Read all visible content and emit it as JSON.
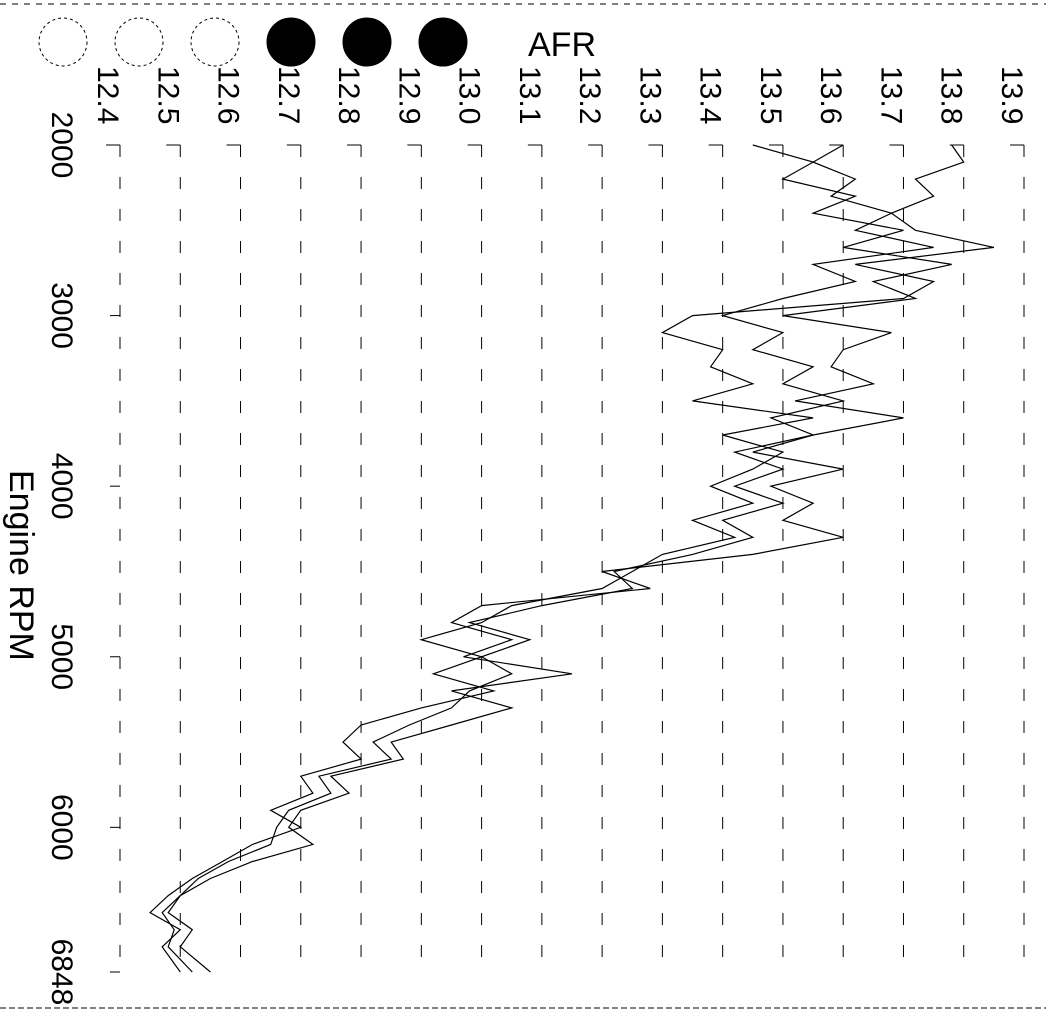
{
  "chart_data": {
    "type": "line",
    "orientation": "rotated 90 degrees clockwise",
    "xlabel": "Engine RPM",
    "ylabel": "AFR",
    "x_ticks": [
      "2000",
      "3000",
      "4000",
      "5000",
      "6000",
      "6848"
    ],
    "y_ticks": [
      "12.4",
      "12.5",
      "12.6",
      "12.7",
      "12.8",
      "12.9",
      "13.0",
      "13.1",
      "13.2",
      "13.3",
      "13.4",
      "13.5",
      "13.6",
      "13.7",
      "13.8",
      "13.9"
    ],
    "xlim": [
      2000,
      6848
    ],
    "ylim": [
      12.4,
      13.9
    ],
    "grid": true,
    "legend": {
      "placement": "top-left",
      "markers": [
        {
          "style": "hollow",
          "color": "#ffffff"
        },
        {
          "style": "hollow",
          "color": "#ffffff"
        },
        {
          "style": "hollow",
          "color": "#ffffff"
        },
        {
          "style": "filled",
          "color": "#000000"
        },
        {
          "style": "filled",
          "color": "#000000"
        },
        {
          "style": "filled",
          "color": "#000000"
        }
      ]
    },
    "series": [
      {
        "color": "#000000",
        "points": [
          [
            2000,
            13.45
          ],
          [
            2100,
            13.55
          ],
          [
            2200,
            13.5
          ],
          [
            2300,
            13.62
          ],
          [
            2400,
            13.55
          ],
          [
            2500,
            13.7
          ],
          [
            2600,
            13.6
          ],
          [
            2700,
            13.78
          ],
          [
            2800,
            13.65
          ],
          [
            2900,
            13.72
          ],
          [
            3000,
            13.5
          ],
          [
            3100,
            13.68
          ],
          [
            3200,
            13.6
          ],
          [
            3300,
            13.58
          ],
          [
            3400,
            13.65
          ],
          [
            3500,
            13.52
          ],
          [
            3600,
            13.7
          ],
          [
            3700,
            13.55
          ],
          [
            3800,
            13.45
          ],
          [
            3900,
            13.6
          ],
          [
            4000,
            13.48
          ],
          [
            4100,
            13.55
          ],
          [
            4200,
            13.5
          ],
          [
            4300,
            13.6
          ],
          [
            4400,
            13.45
          ],
          [
            4500,
            13.2
          ],
          [
            4600,
            13.28
          ],
          [
            4700,
            13.0
          ],
          [
            4800,
            12.95
          ],
          [
            4900,
            13.05
          ],
          [
            5000,
            12.97
          ],
          [
            5100,
            13.15
          ],
          [
            5200,
            12.95
          ],
          [
            5300,
            13.05
          ],
          [
            5400,
            12.95
          ],
          [
            5500,
            12.85
          ],
          [
            5600,
            12.87
          ],
          [
            5700,
            12.75
          ],
          [
            5800,
            12.78
          ],
          [
            5900,
            12.7
          ],
          [
            6000,
            12.68
          ],
          [
            6100,
            12.72
          ],
          [
            6200,
            12.62
          ],
          [
            6300,
            12.55
          ],
          [
            6400,
            12.5
          ],
          [
            6500,
            12.48
          ],
          [
            6600,
            12.52
          ],
          [
            6700,
            12.5
          ],
          [
            6848,
            12.55
          ]
        ]
      },
      {
        "color": "#000000",
        "points": [
          [
            2000,
            13.78
          ],
          [
            2100,
            13.8
          ],
          [
            2200,
            13.72
          ],
          [
            2300,
            13.75
          ],
          [
            2400,
            13.68
          ],
          [
            2500,
            13.72
          ],
          [
            2600,
            13.85
          ],
          [
            2700,
            13.62
          ],
          [
            2800,
            13.75
          ],
          [
            2900,
            13.7
          ],
          [
            3000,
            13.35
          ],
          [
            3100,
            13.3
          ],
          [
            3200,
            13.4
          ],
          [
            3300,
            13.38
          ],
          [
            3400,
            13.45
          ],
          [
            3500,
            13.35
          ],
          [
            3600,
            13.55
          ],
          [
            3700,
            13.4
          ],
          [
            3800,
            13.5
          ],
          [
            3900,
            13.45
          ],
          [
            4000,
            13.38
          ],
          [
            4100,
            13.45
          ],
          [
            4200,
            13.35
          ],
          [
            4300,
            13.42
          ],
          [
            4400,
            13.3
          ],
          [
            4500,
            13.25
          ],
          [
            4600,
            13.2
          ],
          [
            4700,
            13.05
          ],
          [
            4800,
            13.0
          ],
          [
            4900,
            12.9
          ],
          [
            5000,
            13.0
          ],
          [
            5100,
            12.92
          ],
          [
            5200,
            13.02
          ],
          [
            5300,
            12.9
          ],
          [
            5400,
            12.8
          ],
          [
            5500,
            12.77
          ],
          [
            5600,
            12.8
          ],
          [
            5700,
            12.7
          ],
          [
            5800,
            12.72
          ],
          [
            5900,
            12.65
          ],
          [
            6000,
            12.7
          ],
          [
            6100,
            12.62
          ],
          [
            6200,
            12.57
          ],
          [
            6300,
            12.52
          ],
          [
            6400,
            12.48
          ],
          [
            6500,
            12.45
          ],
          [
            6600,
            12.5
          ],
          [
            6700,
            12.47
          ],
          [
            6848,
            12.5
          ]
        ]
      },
      {
        "color": "#000000",
        "points": [
          [
            2000,
            13.6
          ],
          [
            2100,
            13.55
          ],
          [
            2200,
            13.62
          ],
          [
            2300,
            13.58
          ],
          [
            2400,
            13.68
          ],
          [
            2500,
            13.62
          ],
          [
            2600,
            13.75
          ],
          [
            2700,
            13.55
          ],
          [
            2800,
            13.62
          ],
          [
            2900,
            13.5
          ],
          [
            3000,
            13.4
          ],
          [
            3100,
            13.5
          ],
          [
            3200,
            13.45
          ],
          [
            3300,
            13.55
          ],
          [
            3400,
            13.5
          ],
          [
            3500,
            13.6
          ],
          [
            3600,
            13.48
          ],
          [
            3700,
            13.55
          ],
          [
            3800,
            13.42
          ],
          [
            3900,
            13.5
          ],
          [
            4000,
            13.42
          ],
          [
            4100,
            13.5
          ],
          [
            4200,
            13.4
          ],
          [
            4300,
            13.45
          ],
          [
            4400,
            13.35
          ],
          [
            4500,
            13.22
          ],
          [
            4600,
            13.25
          ],
          [
            4700,
            13.1
          ],
          [
            4800,
            12.98
          ],
          [
            4900,
            13.08
          ],
          [
            5000,
            13.0
          ],
          [
            5100,
            13.05
          ],
          [
            5200,
            12.98
          ],
          [
            5300,
            12.95
          ],
          [
            5400,
            12.88
          ],
          [
            5500,
            12.82
          ],
          [
            5600,
            12.85
          ],
          [
            5700,
            12.73
          ],
          [
            5800,
            12.75
          ],
          [
            5900,
            12.68
          ],
          [
            6000,
            12.66
          ],
          [
            6100,
            12.65
          ],
          [
            6200,
            12.58
          ],
          [
            6300,
            12.53
          ],
          [
            6400,
            12.5
          ],
          [
            6500,
            12.47
          ],
          [
            6600,
            12.49
          ],
          [
            6700,
            12.48
          ],
          [
            6848,
            12.52
          ]
        ]
      }
    ]
  }
}
